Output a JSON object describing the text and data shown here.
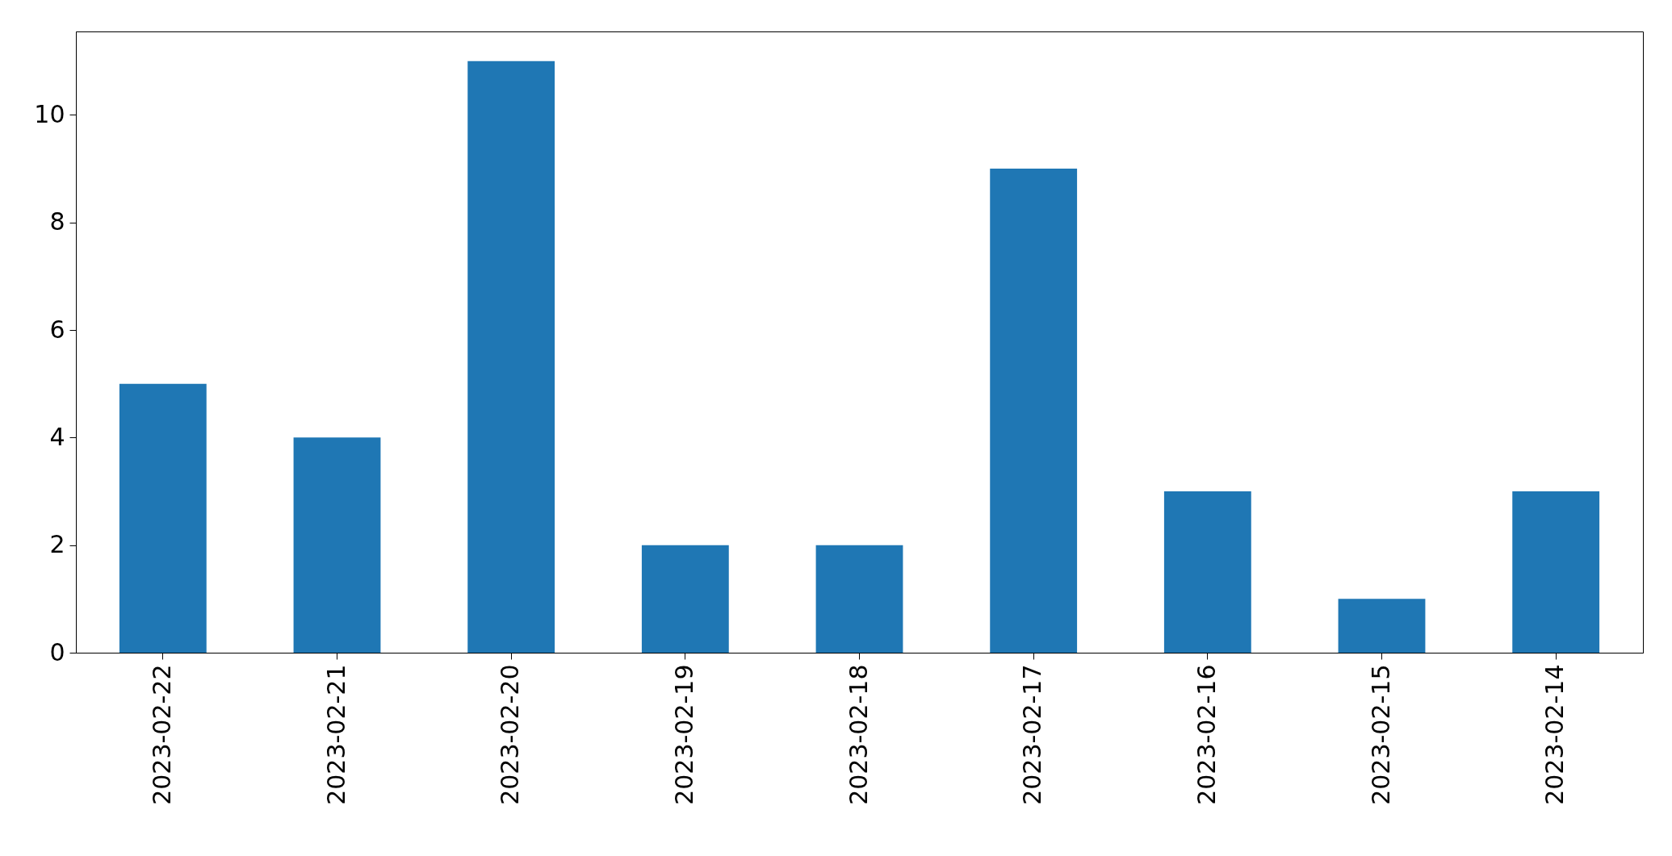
{
  "chart_data": {
    "type": "bar",
    "categories": [
      "2023-02-22",
      "2023-02-21",
      "2023-02-20",
      "2023-02-19",
      "2023-02-18",
      "2023-02-17",
      "2023-02-16",
      "2023-02-15",
      "2023-02-14"
    ],
    "values": [
      5,
      4,
      11,
      2,
      2,
      9,
      3,
      1,
      3
    ],
    "color": "#1f77b4",
    "ylim": [
      0,
      11.55
    ],
    "yticks": [
      0,
      2,
      4,
      6,
      8,
      10
    ]
  }
}
